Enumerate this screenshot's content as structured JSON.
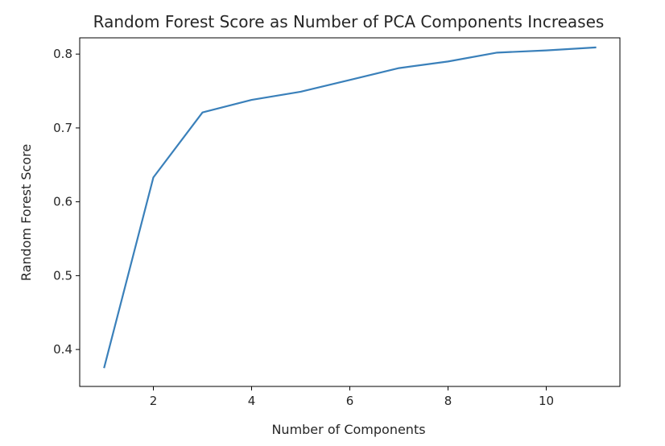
{
  "chart_data": {
    "type": "line",
    "title": "Random Forest Score as Number of PCA Components Increases",
    "xlabel": "Number of Components",
    "ylabel": "Random Forest Score",
    "xlim": [
      0.5,
      11.5
    ],
    "ylim": [
      0.35,
      0.822
    ],
    "xticks": [
      2,
      4,
      6,
      8,
      10
    ],
    "xtick_labels": [
      "2",
      "4",
      "6",
      "8",
      "10"
    ],
    "yticks": [
      0.4,
      0.5,
      0.6,
      0.7,
      0.8
    ],
    "ytick_labels": [
      "0.4",
      "0.5",
      "0.6",
      "0.7",
      "0.8"
    ],
    "grid": false,
    "series": [
      {
        "color": "#3a80ba",
        "x": [
          1,
          2,
          3,
          4,
          5,
          6,
          7,
          8,
          9,
          10,
          11
        ],
        "y": [
          0.376,
          0.633,
          0.721,
          0.738,
          0.749,
          0.765,
          0.781,
          0.79,
          0.802,
          0.805,
          0.809
        ]
      }
    ]
  }
}
